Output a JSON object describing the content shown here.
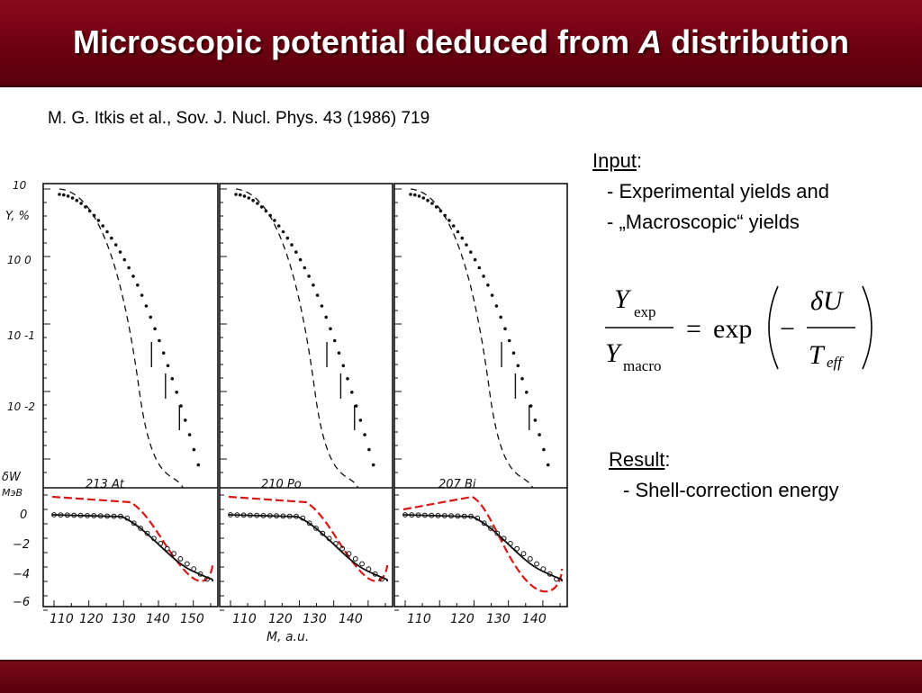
{
  "slide": {
    "title_before": "Microscopic potential deduced from ",
    "title_italic": "A",
    "title_after": " distribution",
    "reference": "M. G. Itkis et al., Sov. J. Nucl. Phys. 43 (1986) 719"
  },
  "input_section": {
    "heading": "Input",
    "items": [
      "-  Experimental yields and",
      "-  „Macroscopic“ yields"
    ]
  },
  "equation": {
    "y": "Y",
    "sub_exp": "exp",
    "sub_macro": "macro",
    "equals": "=",
    "exp": "exp",
    "minus": "−",
    "delta_u": "δU",
    "t": "T",
    "sub_eff": "eff"
  },
  "result_section": {
    "heading": "Result",
    "items": [
      "-  Shell-correction energy"
    ]
  },
  "figure": {
    "y_label_top": "Y, %",
    "y_ticks_top": [
      "10",
      "10 0",
      "10 -1",
      "10 -2"
    ],
    "y_label_bottom_1": "δW",
    "y_label_bottom_2": "МэВ",
    "y_ticks_bottom": [
      "0",
      "−2",
      "−4",
      "−6"
    ],
    "x_label": "M, a.u.",
    "panels": [
      {
        "nucleus": "213 At",
        "x_ticks": [
          "110",
          "120",
          "130",
          "140",
          "150"
        ]
      },
      {
        "nucleus": "210 Po",
        "x_ticks": [
          "110",
          "120",
          "130",
          "140"
        ]
      },
      {
        "nucleus": "207 Bi",
        "x_ticks": [
          "110",
          "120",
          "130",
          "140"
        ]
      }
    ],
    "colors": {
      "model_curve": "#d81818",
      "data": "#111111"
    }
  }
}
